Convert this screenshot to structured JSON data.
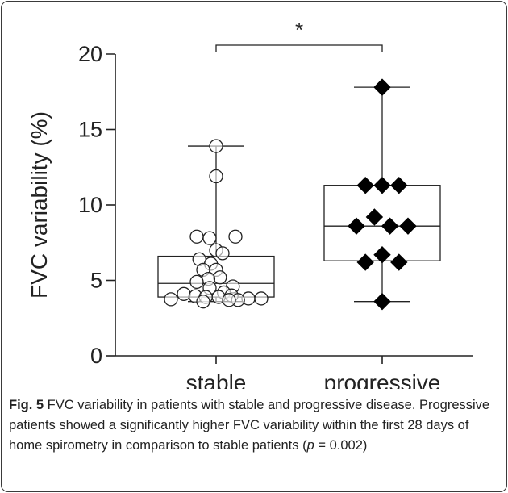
{
  "chart_data": {
    "type": "box_scatter",
    "ylabel": "FVC variability (%)",
    "xlabel": "",
    "ylim": [
      0,
      20
    ],
    "yticks": [
      0,
      5,
      10,
      15,
      20
    ],
    "categories": [
      "stable",
      "progressive"
    ],
    "groups": [
      {
        "name": "stable",
        "marker": "circle-open",
        "box": {
          "min": 3.6,
          "q1": 3.9,
          "median": 4.8,
          "q3": 6.6,
          "max": 13.9
        },
        "points": [
          {
            "y": 13.9,
            "j": 0
          },
          {
            "y": 11.9,
            "j": 0
          },
          {
            "y": 7.9,
            "j": -1.5
          },
          {
            "y": 7.9,
            "j": 1.5
          },
          {
            "y": 7.8,
            "j": -0.5
          },
          {
            "y": 7.0,
            "j": 0
          },
          {
            "y": 6.8,
            "j": 0.5
          },
          {
            "y": 6.4,
            "j": -1.3
          },
          {
            "y": 6.1,
            "j": -0.4
          },
          {
            "y": 5.7,
            "j": 0
          },
          {
            "y": 5.7,
            "j": -1.0
          },
          {
            "y": 5.2,
            "j": 0.3
          },
          {
            "y": 5.1,
            "j": -0.6
          },
          {
            "y": 4.9,
            "j": -1.5
          },
          {
            "y": 4.6,
            "j": 1.3
          },
          {
            "y": 4.5,
            "j": -0.5
          },
          {
            "y": 4.2,
            "j": 0.6
          },
          {
            "y": 4.1,
            "j": -2.5
          },
          {
            "y": 4.0,
            "j": 1.2
          },
          {
            "y": 3.95,
            "j": -1.6
          },
          {
            "y": 3.9,
            "j": -0.8
          },
          {
            "y": 3.9,
            "j": 0.2
          },
          {
            "y": 3.8,
            "j": 2.5
          },
          {
            "y": 3.8,
            "j": 3.5
          },
          {
            "y": 3.75,
            "j": -3.5
          },
          {
            "y": 3.7,
            "j": 1.7
          },
          {
            "y": 3.7,
            "j": 1.0
          },
          {
            "y": 3.6,
            "j": -1.0
          }
        ]
      },
      {
        "name": "progressive",
        "marker": "diamond-filled",
        "box": {
          "min": 3.6,
          "q1": 6.3,
          "median": 8.6,
          "q3": 11.3,
          "max": 17.8
        },
        "points": [
          {
            "y": 17.8,
            "j": 0
          },
          {
            "y": 11.3,
            "j": -1.3
          },
          {
            "y": 11.3,
            "j": 0
          },
          {
            "y": 11.3,
            "j": 1.3
          },
          {
            "y": 9.2,
            "j": -0.6
          },
          {
            "y": 8.6,
            "j": -2.0
          },
          {
            "y": 8.6,
            "j": 0.6
          },
          {
            "y": 8.6,
            "j": 2.0
          },
          {
            "y": 6.7,
            "j": 0
          },
          {
            "y": 6.2,
            "j": -1.3
          },
          {
            "y": 6.2,
            "j": 1.3
          },
          {
            "y": 3.6,
            "j": 0
          }
        ]
      }
    ],
    "annotations": [
      {
        "type": "significance_bracket",
        "from": "stable",
        "to": "progressive",
        "label": "*"
      }
    ]
  },
  "caption": {
    "fig_label": "Fig. 5",
    "text_before_p": " FVC variability in patients with stable and progressive disease. Progressive patients showed a significantly higher FVC variability within the first 28 days of home spirometry in comparison to stable patients (",
    "p_symbol": "p",
    "text_after_p": " = 0.002)"
  }
}
